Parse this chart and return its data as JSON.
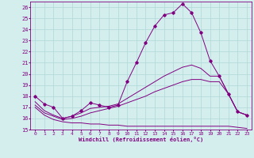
{
  "xlabel": "Windchill (Refroidissement éolien,°C)",
  "xlim": [
    -0.5,
    23.5
  ],
  "ylim": [
    15,
    26.5
  ],
  "yticks": [
    15,
    16,
    17,
    18,
    19,
    20,
    21,
    22,
    23,
    24,
    25,
    26
  ],
  "xticks": [
    0,
    1,
    2,
    3,
    4,
    5,
    6,
    7,
    8,
    9,
    10,
    11,
    12,
    13,
    14,
    15,
    16,
    17,
    18,
    19,
    20,
    21,
    22,
    23
  ],
  "bg_color": "#d4eeee",
  "line_color": "#800080",
  "grid_color": "#b0d8d8",
  "line1": [
    18.0,
    17.3,
    17.0,
    16.0,
    16.2,
    16.7,
    17.4,
    17.2,
    17.0,
    17.2,
    19.3,
    21.0,
    22.8,
    24.3,
    25.3,
    25.5,
    26.3,
    25.5,
    23.7,
    21.2,
    19.8,
    18.2,
    16.6,
    16.3
  ],
  "line2": [
    17.5,
    16.7,
    16.3,
    16.0,
    16.2,
    16.5,
    16.9,
    17.0,
    17.1,
    17.3,
    17.8,
    18.3,
    18.8,
    19.3,
    19.8,
    20.2,
    20.6,
    20.8,
    20.5,
    19.8,
    19.8,
    18.2,
    16.6,
    16.3
  ],
  "line3": [
    17.2,
    16.5,
    16.2,
    15.9,
    16.0,
    16.2,
    16.5,
    16.7,
    16.9,
    17.1,
    17.4,
    17.7,
    18.0,
    18.4,
    18.7,
    19.0,
    19.3,
    19.5,
    19.5,
    19.3,
    19.3,
    18.2,
    16.6,
    16.3
  ],
  "line4": [
    17.0,
    16.3,
    15.9,
    15.7,
    15.6,
    15.6,
    15.5,
    15.5,
    15.4,
    15.4,
    15.3,
    15.3,
    15.3,
    15.3,
    15.3,
    15.3,
    15.3,
    15.3,
    15.3,
    15.3,
    15.3,
    15.3,
    15.2,
    15.1
  ]
}
